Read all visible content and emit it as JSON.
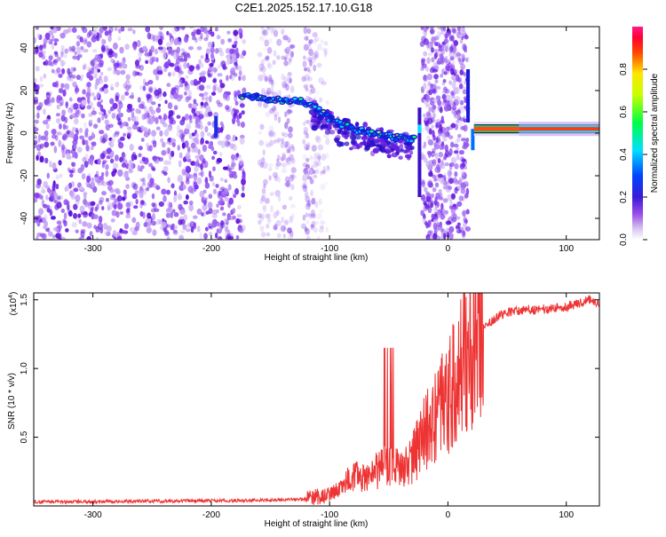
{
  "title": "C2E1.2025.152.17.10.G18",
  "chart_data": [
    {
      "type": "heatmap",
      "xlabel": "Height of straight line (km)",
      "ylabel": "Frequency (Hz)",
      "xlim": [
        -350,
        128
      ],
      "ylim": [
        -50,
        50
      ],
      "xticks": [
        -300,
        -200,
        -100,
        0,
        100
      ],
      "yticks": [
        -40,
        -20,
        0,
        20,
        40
      ],
      "colorbar": {
        "label": "Normalized spectral amplitude",
        "range": [
          0,
          1
        ],
        "ticks": [
          "0.0",
          "0.2",
          "0.4",
          "0.6",
          "0.8"
        ]
      },
      "ridge": [
        {
          "x": -175,
          "y": 18
        },
        {
          "x": -150,
          "y": 16
        },
        {
          "x": -125,
          "y": 15
        },
        {
          "x": -110,
          "y": 11
        },
        {
          "x": -95,
          "y": 5
        },
        {
          "x": -80,
          "y": 2
        },
        {
          "x": -65,
          "y": 0
        },
        {
          "x": -45,
          "y": -2
        },
        {
          "x": -30,
          "y": -3
        },
        {
          "x": 20,
          "y": 2
        },
        {
          "x": 60,
          "y": 2
        },
        {
          "x": 128,
          "y": 2
        }
      ]
    },
    {
      "type": "line",
      "xlabel": "Height of straight line (km)",
      "ylabel": "SNR (10 * v/v)",
      "yscale_label": "(x10",
      "yscale_exp": "4",
      "yscale_close": ")",
      "xlim": [
        -350,
        128
      ],
      "ylim": [
        0,
        15500
      ],
      "xticks": [
        -300,
        -200,
        -100,
        0,
        100
      ],
      "yticks": [
        "0.5",
        "1.0",
        "1.5"
      ],
      "ytick_values": [
        5000,
        10000,
        15000
      ],
      "series": [
        {
          "color": "#ee3333",
          "x": [
            -350,
            -300,
            -250,
            -200,
            -150,
            -120,
            -100,
            -90,
            -80,
            -70,
            -60,
            -50,
            -40,
            -30,
            -20,
            -10,
            0,
            10,
            20,
            30,
            40,
            50,
            60,
            70,
            80,
            90,
            100,
            110,
            120,
            128
          ],
          "values": [
            300,
            320,
            350,
            380,
            420,
            500,
            800,
            1400,
            2200,
            2000,
            2600,
            3000,
            2800,
            3400,
            5200,
            6600,
            7800,
            9600,
            12000,
            13000,
            13700,
            14100,
            14200,
            14300,
            14300,
            14400,
            14500,
            14700,
            15000,
            14800
          ]
        }
      ]
    }
  ]
}
